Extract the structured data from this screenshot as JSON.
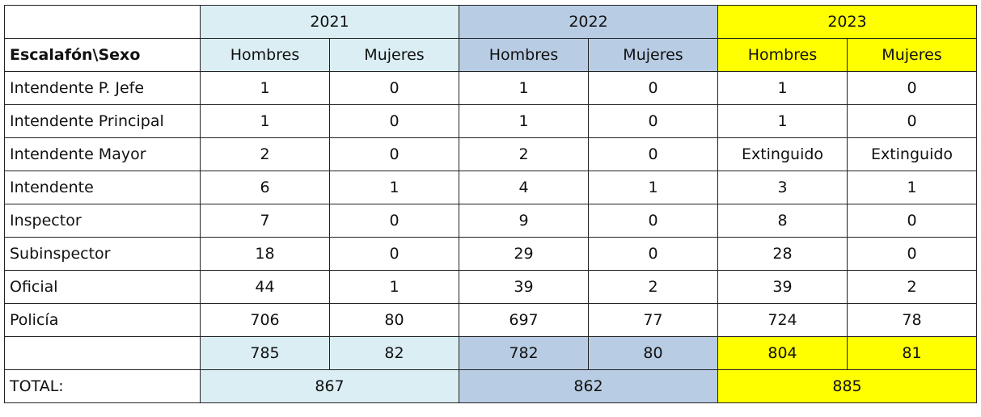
{
  "years": [
    {
      "label": "2021",
      "color": "#daeef3",
      "total": "867"
    },
    {
      "label": "2022",
      "color": "#b8cce4",
      "total": "862"
    },
    {
      "label": "2023",
      "color": "#ffff00",
      "total": "885"
    }
  ],
  "header": {
    "corner": "Escalafón\\Sexo",
    "men": "Hombres",
    "women": "Mujeres"
  },
  "rows": [
    {
      "rank": "Intendente P. Jefe",
      "values": [
        "1",
        "0",
        "1",
        "0",
        "1",
        "0"
      ]
    },
    {
      "rank": "Intendente Principal",
      "values": [
        "1",
        "0",
        "1",
        "0",
        "1",
        "0"
      ]
    },
    {
      "rank": "Intendente Mayor",
      "values": [
        "2",
        "0",
        "2",
        "0",
        "Extinguido",
        "Extinguido"
      ]
    },
    {
      "rank": "Intendente",
      "values": [
        "6",
        "1",
        "4",
        "1",
        "3",
        "1"
      ]
    },
    {
      "rank": "Inspector",
      "values": [
        "7",
        "0",
        "9",
        "0",
        "8",
        "0"
      ]
    },
    {
      "rank": "Subinspector",
      "values": [
        "18",
        "0",
        "29",
        "0",
        "28",
        "0"
      ]
    },
    {
      "rank": "Oficial",
      "values": [
        "44",
        "1",
        "39",
        "2",
        "39",
        "2"
      ]
    },
    {
      "rank": "Policía",
      "values": [
        "706",
        "80",
        "697",
        "77",
        "724",
        "78"
      ]
    }
  ],
  "subtotals": [
    "785",
    "82",
    "782",
    "80",
    "804",
    "81"
  ],
  "total_label": "TOTAL:"
}
